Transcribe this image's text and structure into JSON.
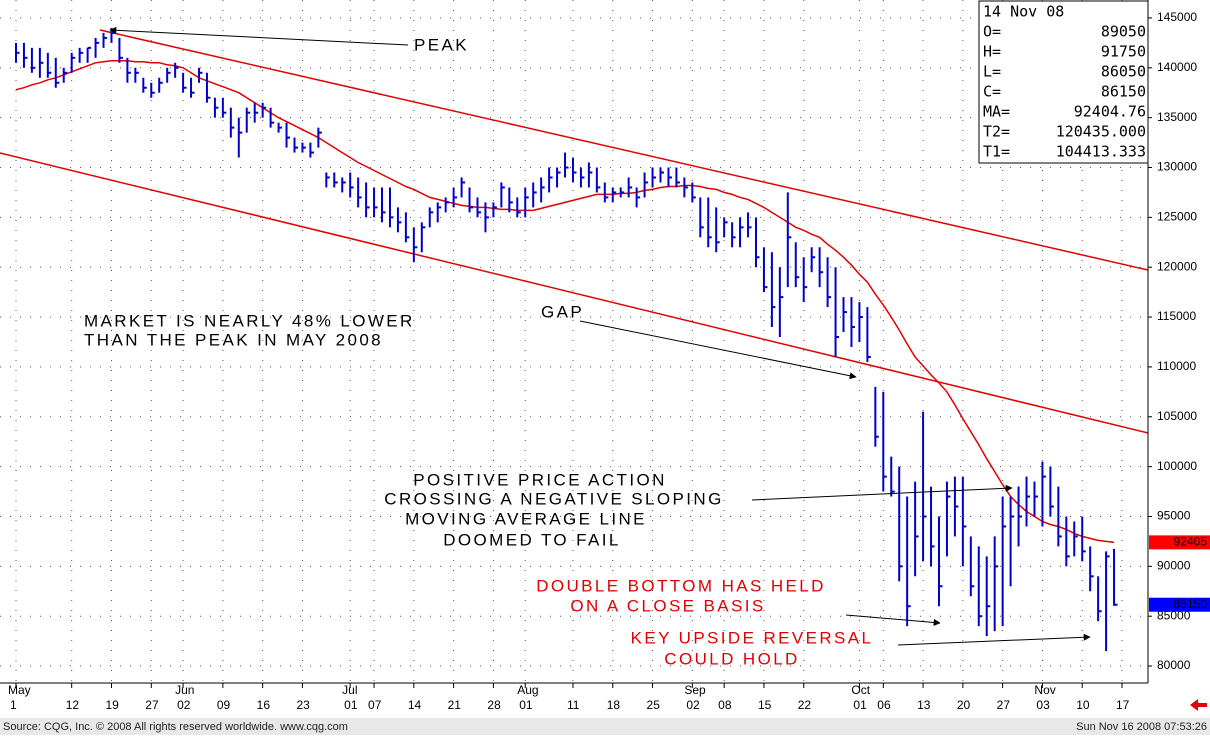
{
  "chart_data": {
    "type": "ohlc",
    "bar_color": "#0000cc",
    "ma_color": "#e00000",
    "grid": true,
    "ylim": [
      78300,
      146800
    ],
    "yticks": [
      80000,
      85000,
      90000,
      95000,
      100000,
      105000,
      110000,
      115000,
      120000,
      125000,
      130000,
      135000,
      140000,
      145000
    ],
    "categories": [
      {
        "day": "1",
        "month": "May"
      },
      null,
      null,
      null,
      null,
      null,
      null,
      {
        "day": "12"
      },
      null,
      null,
      null,
      null,
      {
        "day": "19"
      },
      null,
      null,
      null,
      null,
      {
        "day": "27"
      },
      null,
      null,
      null,
      {
        "day": "02",
        "month": "Jun"
      },
      null,
      null,
      null,
      null,
      {
        "day": "09"
      },
      null,
      null,
      null,
      null,
      {
        "day": "16"
      },
      null,
      null,
      null,
      null,
      {
        "day": "23"
      },
      null,
      null,
      null,
      null,
      null,
      {
        "day": "01",
        "month": "Jul"
      },
      null,
      null,
      {
        "day": "07"
      },
      null,
      null,
      null,
      null,
      {
        "day": "14"
      },
      null,
      null,
      null,
      null,
      {
        "day": "21"
      },
      null,
      null,
      null,
      null,
      {
        "day": "28"
      },
      null,
      null,
      null,
      {
        "day": "01",
        "month": "Aug"
      },
      null,
      null,
      null,
      null,
      null,
      {
        "day": "11"
      },
      null,
      null,
      null,
      null,
      {
        "day": "18"
      },
      null,
      null,
      null,
      null,
      {
        "day": "25"
      },
      null,
      null,
      null,
      null,
      {
        "day": "02",
        "month": "Sep"
      },
      null,
      null,
      null,
      {
        "day": "08"
      },
      null,
      null,
      null,
      null,
      {
        "day": "15"
      },
      null,
      null,
      null,
      null,
      {
        "day": "22"
      },
      null,
      null,
      null,
      null,
      null,
      null,
      {
        "day": "01",
        "month": "Oct"
      },
      null,
      null,
      {
        "day": "06"
      },
      null,
      null,
      null,
      null,
      {
        "day": "13"
      },
      null,
      null,
      null,
      null,
      {
        "day": "20"
      },
      null,
      null,
      null,
      null,
      {
        "day": "27"
      },
      null,
      null,
      null,
      null,
      {
        "day": "03",
        "month": "Nov"
      },
      null,
      null,
      null,
      null,
      {
        "day": "10"
      },
      null,
      null,
      null,
      null,
      {
        "day": "17"
      }
    ],
    "high": [
      142500,
      142500,
      142000,
      142000,
      141500,
      141000,
      140000,
      141500,
      142000,
      142000,
      143000,
      143500,
      144000,
      143000,
      141000,
      140000,
      139000,
      138500,
      139000,
      140000,
      140500,
      139500,
      139000,
      140000,
      139500,
      137000,
      137000,
      136000,
      135000,
      136000,
      136500,
      136500,
      136000,
      134500,
      134500,
      133000,
      132500,
      132500,
      134000,
      129500,
      129500,
      129000,
      129500,
      129000,
      128500,
      128000,
      128000,
      128000,
      126000,
      125500,
      124000,
      124500,
      126000,
      126500,
      127000,
      128000,
      129000,
      128000,
      127000,
      126500,
      126500,
      128500,
      128000,
      127000,
      128000,
      128500,
      129000,
      130000,
      130000,
      131500,
      131000,
      130000,
      130500,
      130000,
      128500,
      128000,
      128000,
      129000,
      128000,
      129500,
      130000,
      130000,
      130000,
      130000,
      129000,
      128500,
      127000,
      127000,
      126000,
      125000,
      124500,
      125000,
      125500,
      125000,
      122000,
      121500,
      120000,
      127500,
      122500,
      121000,
      122000,
      122000,
      121000,
      120000,
      117000,
      117000,
      116500,
      116000,
      108000,
      107500,
      101000,
      100000,
      97000,
      98500,
      105500,
      98000,
      95000,
      98500,
      99000,
      99000,
      93000,
      92000,
      91000,
      93000,
      97000,
      97000,
      98000,
      99000,
      98500,
      100500,
      100000,
      98000,
      95000,
      94500,
      95000,
      92000,
      89000,
      91500,
      91750,
      null
    ],
    "low": [
      140500,
      140000,
      139500,
      139000,
      139000,
      138000,
      138500,
      139500,
      140500,
      140500,
      141000,
      142000,
      142500,
      140500,
      138500,
      138500,
      137500,
      137000,
      137500,
      138500,
      139000,
      137500,
      137000,
      138500,
      136500,
      135000,
      135000,
      133000,
      131000,
      133500,
      134500,
      135000,
      134000,
      133500,
      132000,
      131500,
      131500,
      131000,
      132000,
      128000,
      128000,
      127500,
      127000,
      126000,
      125000,
      125000,
      124500,
      124000,
      123500,
      122500,
      120500,
      121500,
      124000,
      124500,
      125500,
      126000,
      127000,
      125500,
      125000,
      123500,
      125000,
      126000,
      125500,
      125000,
      125000,
      126000,
      126500,
      127500,
      128000,
      129000,
      128500,
      128000,
      128000,
      127500,
      126500,
      126500,
      127000,
      127000,
      126000,
      127000,
      128000,
      128500,
      128000,
      128000,
      127000,
      126500,
      123000,
      122000,
      121500,
      123000,
      122000,
      122000,
      123000,
      120000,
      117500,
      114000,
      113000,
      118000,
      118000,
      116500,
      119500,
      118000,
      116000,
      111000,
      113500,
      112000,
      112500,
      110500,
      102000,
      97500,
      97000,
      88500,
      84000,
      89000,
      90500,
      90000,
      86000,
      91000,
      93000,
      90000,
      87000,
      84000,
      83000,
      83500,
      84000,
      88000,
      92000,
      94000,
      95000,
      94000,
      95000,
      92000,
      90000,
      91000,
      90500,
      87500,
      84500,
      81500,
      86050,
      null
    ],
    "close": [
      141500,
      141000,
      140000,
      140500,
      139500,
      138500,
      139500,
      141000,
      141500,
      142000,
      142500,
      143000,
      143500,
      141000,
      139500,
      139500,
      138000,
      137500,
      138500,
      139500,
      140000,
      138000,
      137500,
      139500,
      137000,
      136000,
      135500,
      134000,
      133500,
      135500,
      135500,
      136000,
      134500,
      134000,
      133000,
      132000,
      132000,
      131500,
      133500,
      129000,
      128500,
      128500,
      128000,
      127000,
      126000,
      126000,
      125500,
      125000,
      124500,
      123000,
      122000,
      124000,
      125500,
      126000,
      126500,
      127000,
      128500,
      126000,
      125500,
      125000,
      126000,
      128000,
      126500,
      125500,
      127000,
      127500,
      128000,
      129000,
      129500,
      130000,
      129500,
      129000,
      129500,
      128000,
      127000,
      127500,
      127500,
      128000,
      127000,
      128500,
      129000,
      129500,
      129000,
      128500,
      128000,
      127000,
      124000,
      123000,
      122500,
      124500,
      123000,
      124000,
      124000,
      121000,
      118000,
      116000,
      117000,
      123000,
      119000,
      118000,
      121000,
      119500,
      117000,
      113000,
      115500,
      114000,
      115000,
      111000,
      103000,
      99000,
      97500,
      90000,
      86000,
      93000,
      95000,
      92000,
      88000,
      97000,
      96000,
      94000,
      88000,
      85000,
      86000,
      90000,
      94000,
      95000,
      95000,
      97000,
      97000,
      99000,
      96000,
      93000,
      91000,
      93000,
      91500,
      89000,
      85500,
      91000,
      86150,
      null
    ],
    "ma": [
      137800,
      138000,
      138300,
      138500,
      138800,
      139000,
      139300,
      139600,
      139900,
      140200,
      140500,
      140600,
      140700,
      140700,
      140700,
      140600,
      140600,
      140500,
      140500,
      140300,
      140200,
      140000,
      139500,
      139000,
      138700,
      138400,
      138100,
      137800,
      137500,
      137000,
      136500,
      136000,
      135500,
      135000,
      134600,
      134200,
      133800,
      133400,
      133000,
      132500,
      132000,
      131500,
      131000,
      130500,
      130100,
      129700,
      129300,
      128900,
      128500,
      128100,
      127800,
      127400,
      127000,
      126800,
      126600,
      126400,
      126200,
      126100,
      126000,
      126000,
      125900,
      125800,
      125800,
      125700,
      125700,
      125700,
      125900,
      126100,
      126300,
      126500,
      126700,
      126900,
      127100,
      127300,
      127300,
      127300,
      127400,
      127400,
      127500,
      127700,
      127800,
      128000,
      128100,
      128100,
      128200,
      128200,
      128100,
      127900,
      127800,
      127500,
      127300,
      127000,
      126800,
      126400,
      126000,
      125500,
      125000,
      124500,
      124000,
      123700,
      123300,
      123000,
      122300,
      121700,
      121000,
      120200,
      119300,
      118500,
      117300,
      116200,
      115000,
      113700,
      112300,
      111000,
      110100,
      109200,
      108400,
      107500,
      106200,
      104800,
      103500,
      102200,
      100800,
      99500,
      98200,
      97000,
      96200,
      95500,
      95000,
      94500,
      94200,
      94000,
      93700,
      93300,
      93000,
      92800,
      92600,
      92500,
      92405,
      null
    ],
    "ma_tag": {
      "value": 92405,
      "color": "#ff0000"
    },
    "close_tag": {
      "value": 86150,
      "color": "#0000ff"
    },
    "info_box": {
      "date": "14 Nov 08",
      "entries": [
        {
          "name": "O=",
          "value": 89050
        },
        {
          "name": "H=",
          "value": 91750
        },
        {
          "name": "L=",
          "value": 86050
        },
        {
          "name": "C=",
          "value": 86150
        },
        {
          "name": "MA=",
          "value": 92404.76
        },
        {
          "name": "T2=",
          "value": 120435,
          "value_label": "120435.000"
        },
        {
          "name": "T1=",
          "value": 104413.333
        }
      ]
    },
    "annotations": {
      "peak": "PEAK",
      "gap": "GAP",
      "market": [
        "MARKET IS NEARLY 48% LOWER",
        "THAN THE PEAK IN MAY 2008"
      ],
      "positive": [
        "POSITIVE PRICE ACTION",
        "CROSSING A NEGATIVE SLOPING",
        "MOVING AVERAGE LINE",
        "DOOMED TO FAIL"
      ],
      "double_bottom": [
        "DOUBLE BOTTOM HAS HELD",
        "ON A CLOSE BASIS"
      ],
      "reversal": [
        "KEY UPSIDE REVERSAL",
        "COULD HOLD"
      ]
    },
    "footer": {
      "source": "Source: CQG, Inc. © 2008 All rights reserved worldwide. www.cqg.com",
      "timestamp": "Sun Nov 16 2008 07:53:26"
    }
  }
}
